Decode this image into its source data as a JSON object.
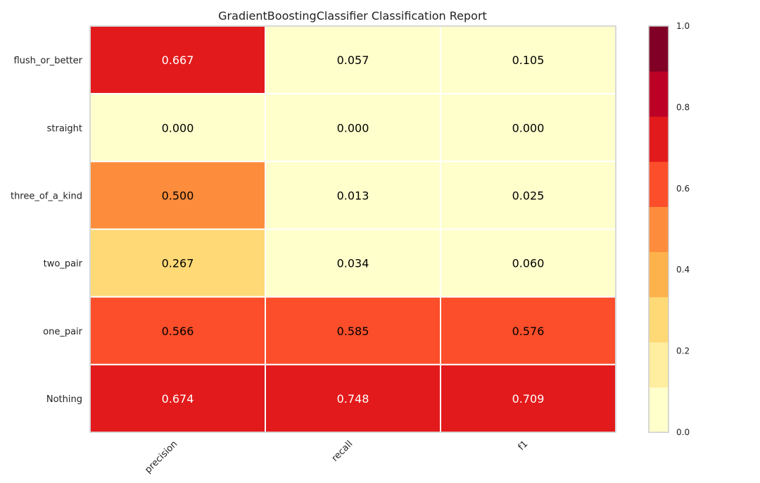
{
  "chart_data": {
    "type": "heatmap",
    "title": "GradientBoostingClassifier Classification Report",
    "columns": [
      "precision",
      "recall",
      "f1"
    ],
    "rows": [
      "flush_or_better",
      "straight",
      "three_of_a_kind",
      "two_pair",
      "one_pair",
      "Nothing"
    ],
    "values": [
      [
        0.667,
        0.057,
        0.105
      ],
      [
        0.0,
        0.0,
        0.0
      ],
      [
        0.5,
        0.013,
        0.025
      ],
      [
        0.267,
        0.034,
        0.06
      ],
      [
        0.566,
        0.585,
        0.576
      ],
      [
        0.674,
        0.748,
        0.709
      ]
    ],
    "value_labels": [
      [
        "0.667",
        "0.057",
        "0.105"
      ],
      [
        "0.000",
        "0.000",
        "0.000"
      ],
      [
        "0.500",
        "0.013",
        "0.025"
      ],
      [
        "0.267",
        "0.034",
        "0.060"
      ],
      [
        "0.566",
        "0.585",
        "0.576"
      ],
      [
        "0.674",
        "0.748",
        "0.709"
      ]
    ],
    "colorbar": {
      "range": [
        0.0,
        1.0
      ],
      "tick_values": [
        0.0,
        0.2,
        0.4,
        0.6,
        0.8,
        1.0
      ],
      "tick_labels": [
        "0.0",
        "0.2",
        "0.4",
        "0.6",
        "0.8",
        "1.0"
      ],
      "colors": [
        "#ffffcc",
        "#ffeda0",
        "#fed976",
        "#feb24c",
        "#fd8d3c",
        "#fc4e2a",
        "#e31a1c",
        "#bd0026",
        "#800026"
      ]
    },
    "text_colors": {
      "dark": "#000000",
      "light": "#ffffff"
    },
    "legend": "colorbar-right",
    "grid": false
  }
}
